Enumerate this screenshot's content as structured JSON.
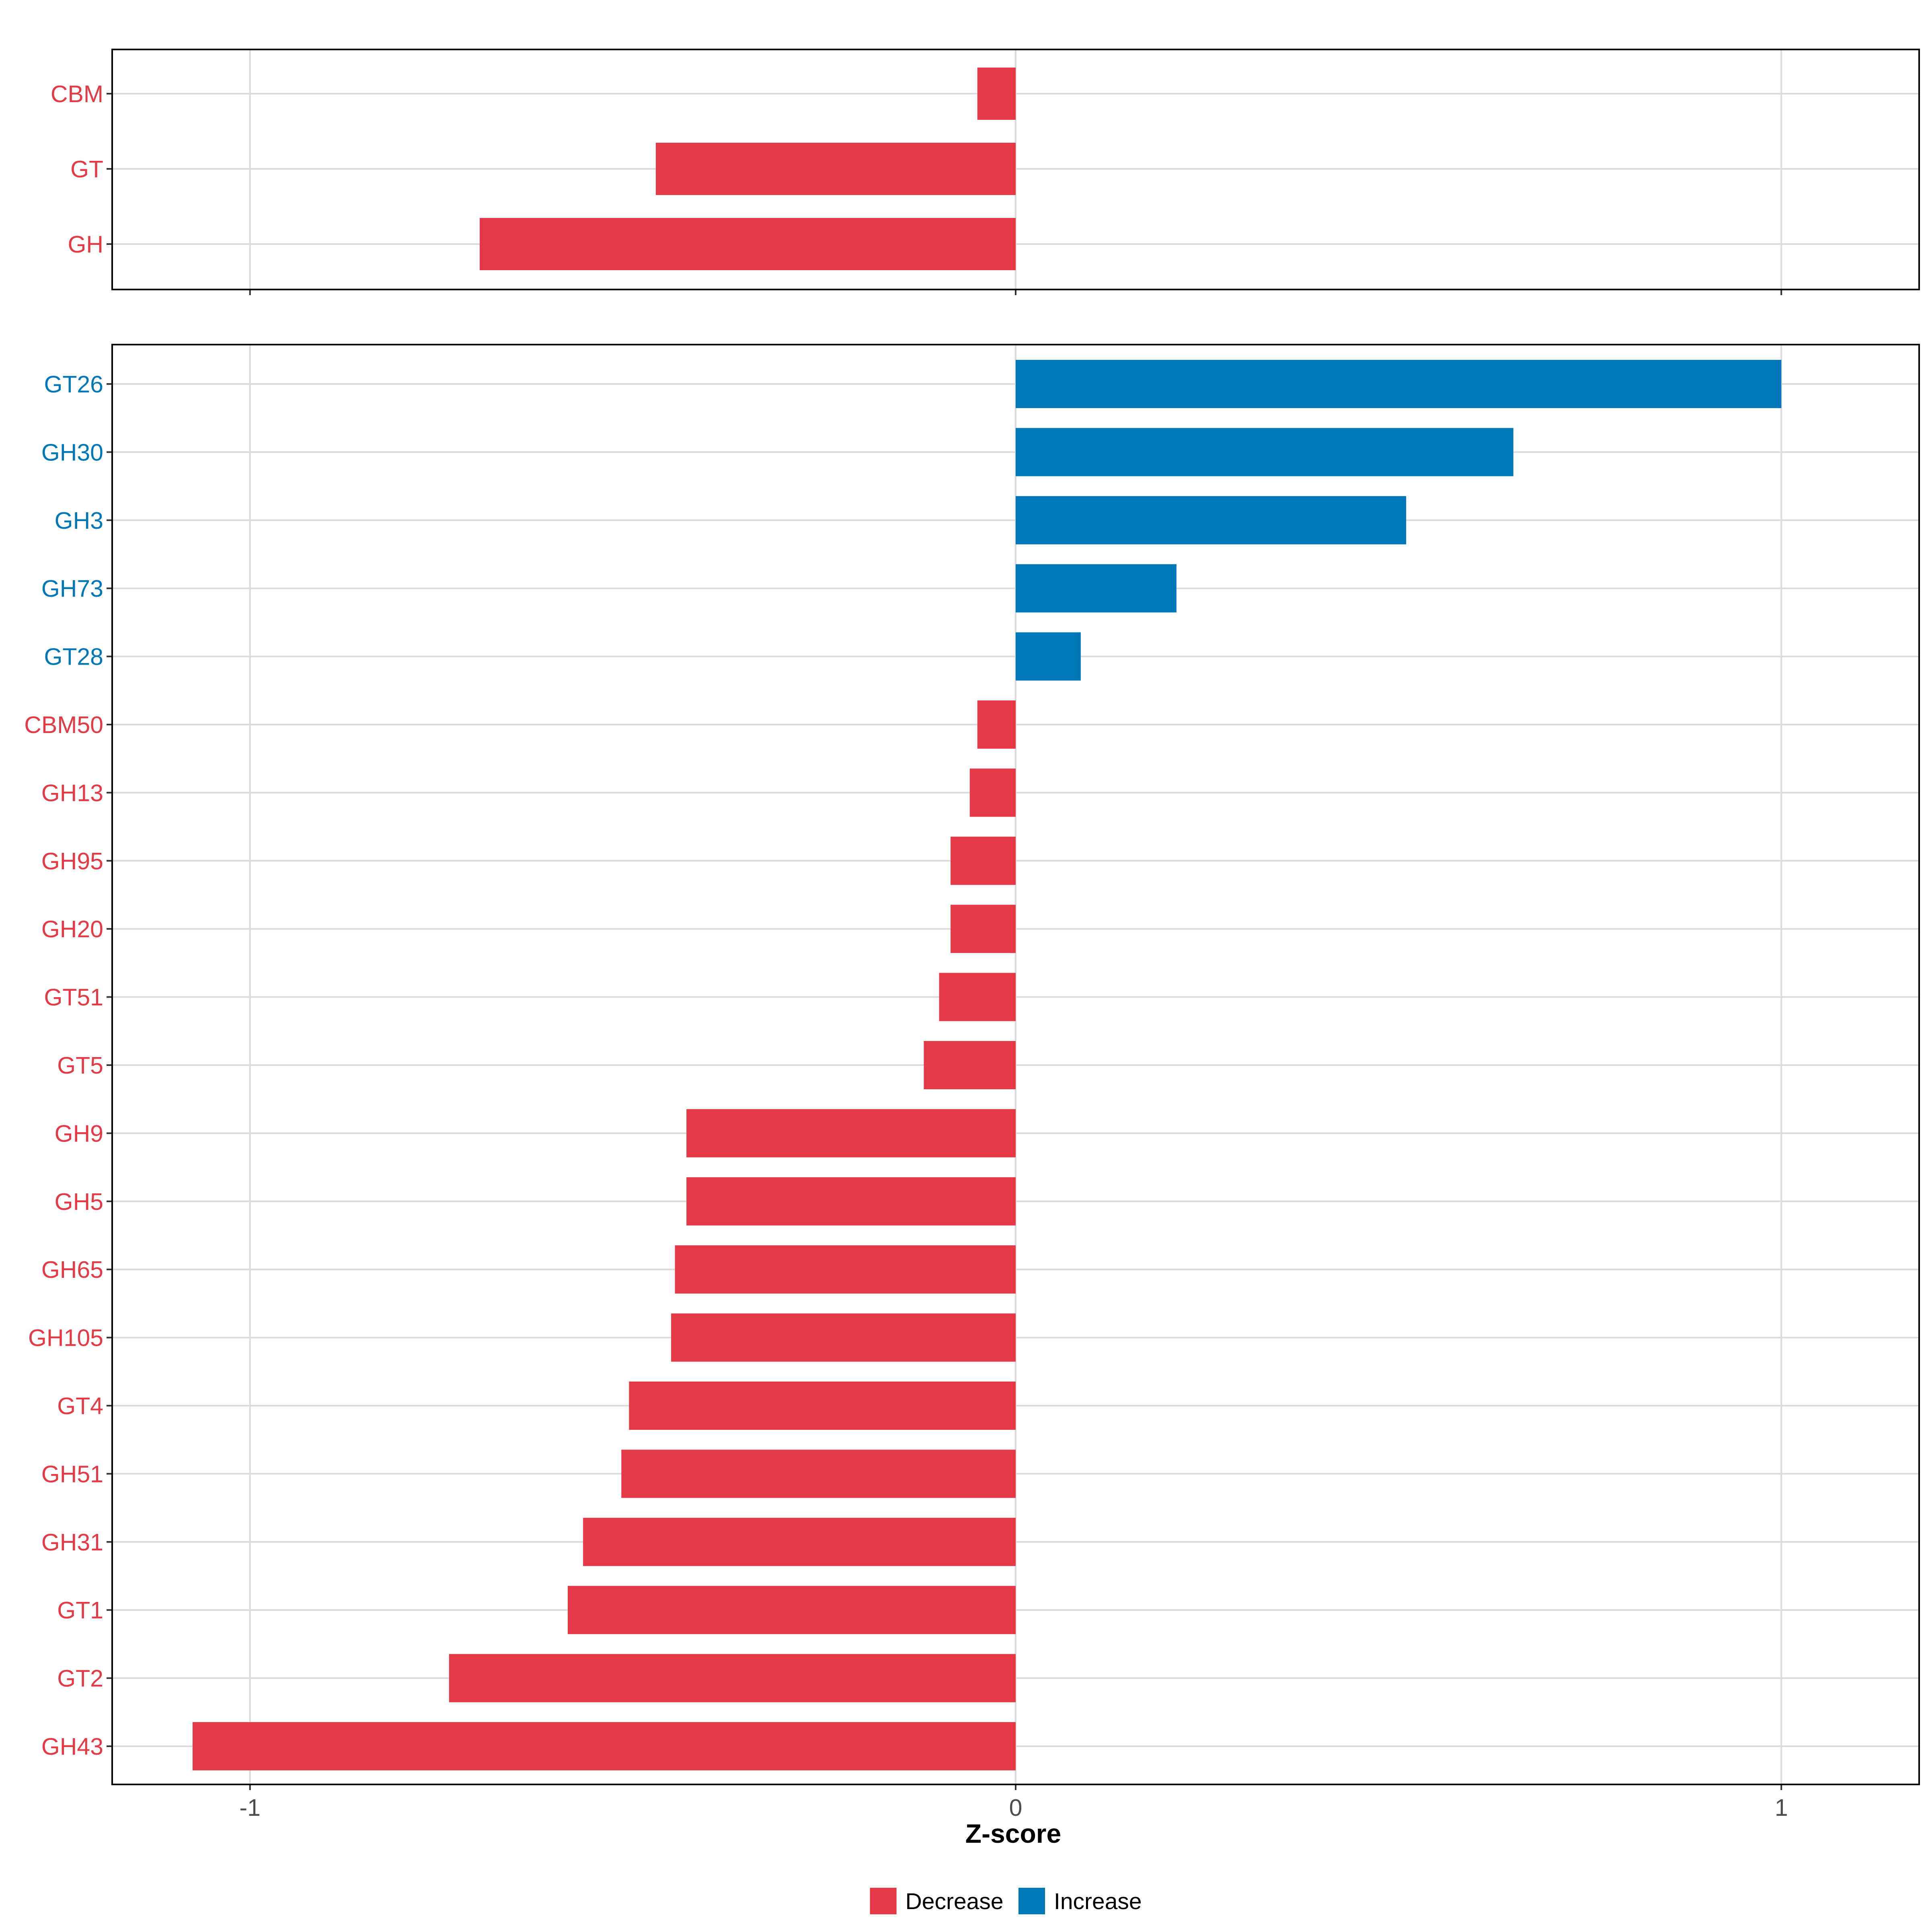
{
  "colors": {
    "decrease": "#E63946",
    "increase": "#0077B6",
    "grid": "#DBDBDB",
    "axis_text": "#4D4D4D",
    "frame": "#000000"
  },
  "chart_data": [
    {
      "type": "bar",
      "orientation": "horizontal",
      "panel": "top",
      "categories": [
        "CBM",
        "GT",
        "GH"
      ],
      "values": [
        -0.05,
        -0.47,
        -0.7
      ],
      "direction": [
        "Decrease",
        "Decrease",
        "Decrease"
      ],
      "xlim": [
        -1.18,
        1.18
      ],
      "xticks": [
        -1,
        0,
        1
      ],
      "grid": true
    },
    {
      "type": "bar",
      "orientation": "horizontal",
      "panel": "bottom",
      "categories": [
        "GT26",
        "GH30",
        "GH3",
        "GH73",
        "GT28",
        "CBM50",
        "GH13",
        "GH95",
        "GH20",
        "GT51",
        "GT5",
        "GH9",
        "GH5",
        "GH65",
        "GH105",
        "GT4",
        "GH51",
        "GH31",
        "GT1",
        "GT2",
        "GH43"
      ],
      "values": [
        1.0,
        0.65,
        0.51,
        0.21,
        0.085,
        -0.05,
        -0.06,
        -0.085,
        -0.085,
        -0.1,
        -0.12,
        -0.43,
        -0.43,
        -0.445,
        -0.45,
        -0.505,
        -0.515,
        -0.565,
        -0.585,
        -0.74,
        -1.075
      ],
      "direction": [
        "Increase",
        "Increase",
        "Increase",
        "Increase",
        "Increase",
        "Decrease",
        "Decrease",
        "Decrease",
        "Decrease",
        "Decrease",
        "Decrease",
        "Decrease",
        "Decrease",
        "Decrease",
        "Decrease",
        "Decrease",
        "Decrease",
        "Decrease",
        "Decrease",
        "Decrease",
        "Decrease"
      ],
      "xlim": [
        -1.18,
        1.18
      ],
      "xticks": [
        -1,
        0,
        1
      ],
      "xtick_labels": [
        "-1",
        "0",
        "1"
      ],
      "xlabel": "Z-score",
      "grid": true
    }
  ],
  "legend": {
    "placement": "bottom",
    "items": [
      {
        "label": "Decrease",
        "key": "decrease"
      },
      {
        "label": "Increase",
        "key": "increase"
      }
    ]
  }
}
